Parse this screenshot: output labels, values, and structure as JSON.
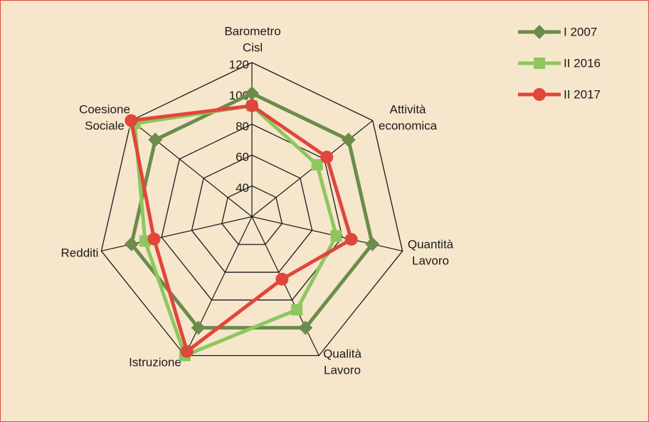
{
  "chart_data": {
    "type": "radar",
    "axes": [
      [
        "Barometro",
        "Cisl"
      ],
      [
        "Attività",
        "economica"
      ],
      [
        "Quantità",
        "Lavoro"
      ],
      [
        "Qualità",
        "Lavoro"
      ],
      [
        "Istruzione"
      ],
      [
        "Redditi"
      ],
      [
        "Coesione",
        "Sociale"
      ]
    ],
    "rmin": 20,
    "rmax": 120,
    "ticks": [
      40,
      60,
      80,
      100,
      120
    ],
    "grid": true,
    "legend_position": "top-right",
    "series": [
      {
        "name": "I 2007",
        "color": "#6b8c4a",
        "marker": "diamond",
        "values": [
          100,
          100,
          100,
          100,
          100,
          100,
          100
        ]
      },
      {
        "name": "II 2016",
        "color": "#8dc75d",
        "marker": "square",
        "values": [
          92,
          74,
          76,
          87,
          120,
          91,
          117
        ]
      },
      {
        "name": "II 2017",
        "color": "#e0463a",
        "marker": "circle",
        "values": [
          92,
          82,
          86,
          65,
          117,
          85,
          120
        ]
      }
    ]
  }
}
